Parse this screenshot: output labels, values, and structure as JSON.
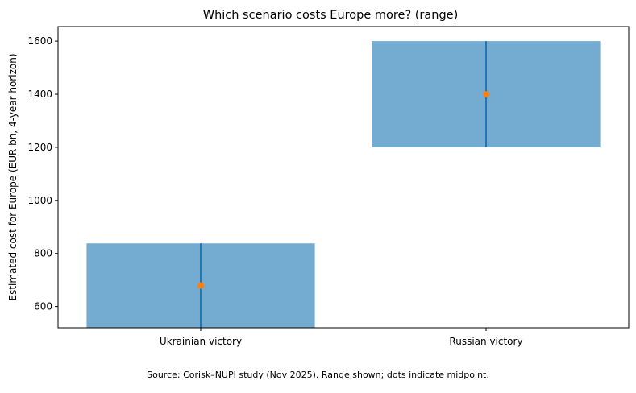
{
  "chart_data": {
    "type": "bar",
    "title": "Which scenario costs Europe more? (range)",
    "ylabel": "Estimated cost for Europe (EUR bn, 4-year horizon)",
    "xlabel": "",
    "categories": [
      "Ukrainian victory",
      "Russian victory"
    ],
    "ranges": [
      {
        "low": 520,
        "high": 838,
        "mid": 679
      },
      {
        "low": 1200,
        "high": 1600,
        "mid": 1400
      }
    ],
    "ylim": [
      520,
      1655
    ],
    "yticks": [
      600,
      800,
      1000,
      1200,
      1400,
      1600
    ],
    "grid": false,
    "colors": {
      "bar": "#74acd1",
      "line": "#1f77b4",
      "dot": "#ff7f0e"
    }
  },
  "caption": "Source: Corisk–NUPI study (Nov 2025). Range shown; dots indicate midpoint."
}
